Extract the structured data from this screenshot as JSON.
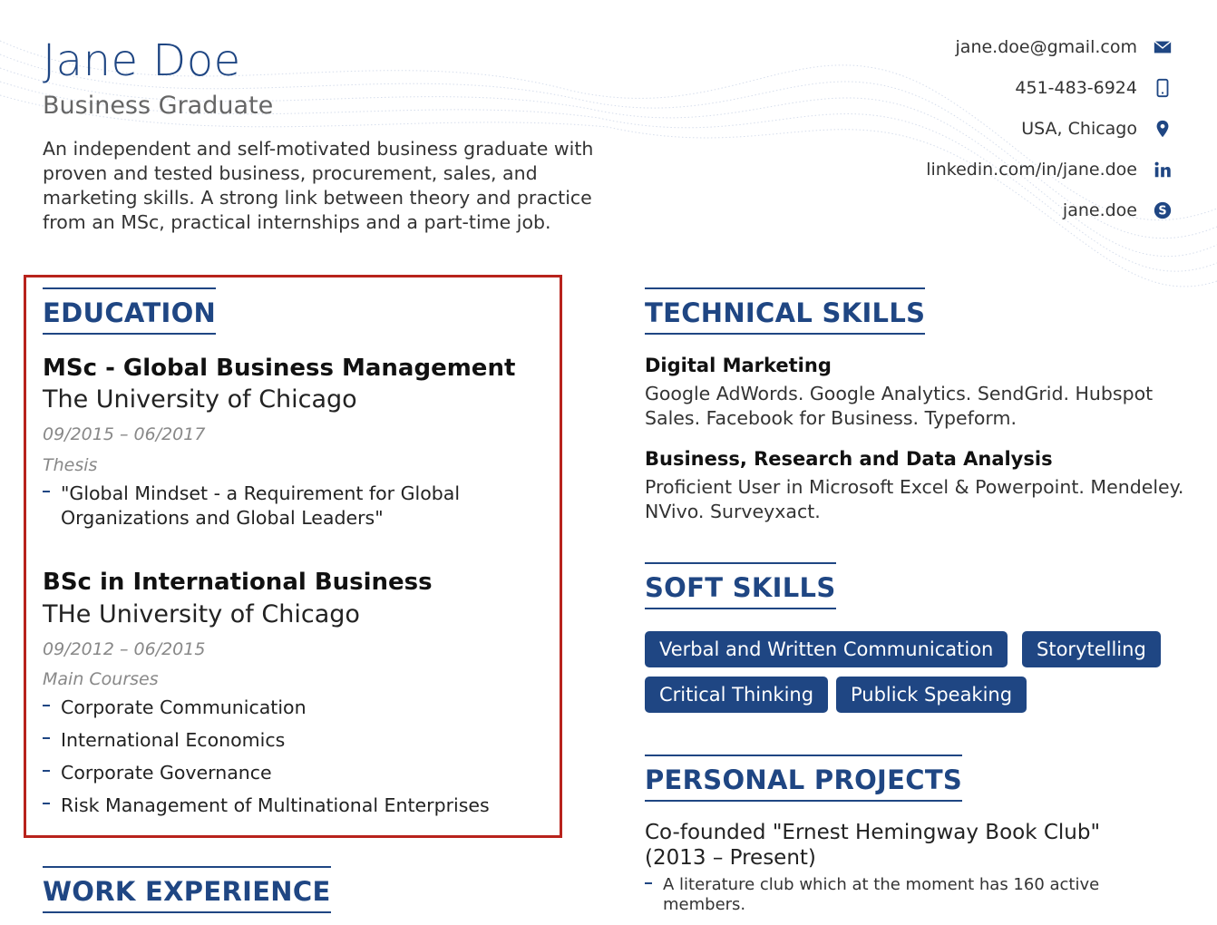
{
  "header": {
    "name": "Jane Doe",
    "role": "Business Graduate",
    "summary": "An independent and self-motivated business graduate with proven and tested business, procurement, sales, and marketing skills. A strong link between theory and practice from an MSc, practical internships and a part-time job."
  },
  "contact": [
    {
      "text": "jane.doe@gmail.com",
      "icon": "envelope-icon"
    },
    {
      "text": "451-483-6924",
      "icon": "phone-icon"
    },
    {
      "text": "USA, Chicago",
      "icon": "location-pin-icon"
    },
    {
      "text": "linkedin.com/in/jane.doe",
      "icon": "linkedin-icon"
    },
    {
      "text": "jane.doe",
      "icon": "skype-icon"
    }
  ],
  "education": {
    "title": "EDUCATION",
    "entries": [
      {
        "degree": "MSc - Global Business Management",
        "school": "The University of Chicago",
        "dates": "09/2015 – 06/2017",
        "label": "Thesis",
        "items": [
          "\"Global Mindset - a Requirement for Global Organizations and Global Leaders\""
        ]
      },
      {
        "degree": "BSc in International Business",
        "school": "THe University of Chicago",
        "dates": "09/2012 – 06/2015",
        "label": "Main Courses",
        "items": [
          "Corporate Communication",
          "International Economics",
          "Corporate Governance",
          "Risk Management of Multinational Enterprises"
        ]
      }
    ]
  },
  "work": {
    "title": "WORK EXPERIENCE"
  },
  "technical": {
    "title": "TECHNICAL SKILLS",
    "groups": [
      {
        "name": "Digital Marketing",
        "text": "Google AdWords. Google Analytics. SendGrid. Hubspot Sales. Facebook for Business. Typeform."
      },
      {
        "name": "Business, Research and Data Analysis",
        "text": "Proficient User in Microsoft Excel & Powerpoint. Mendeley. NVivo. Surveyxact."
      }
    ]
  },
  "soft": {
    "title": "SOFT SKILLS",
    "chips": [
      "Verbal and Written Communication",
      "Storytelling",
      "Critical Thinking",
      "Publick Speaking"
    ]
  },
  "projects": {
    "title": "PERSONAL PROJECTS",
    "items": [
      {
        "title": "Co-founded \"Ernest Hemingway Book Club\" (2013 – Present)",
        "bullet": "A literature club which at the moment has 160 active members."
      }
    ]
  },
  "colors": {
    "accent": "#1f4683",
    "highlight_border": "#b8231c"
  }
}
